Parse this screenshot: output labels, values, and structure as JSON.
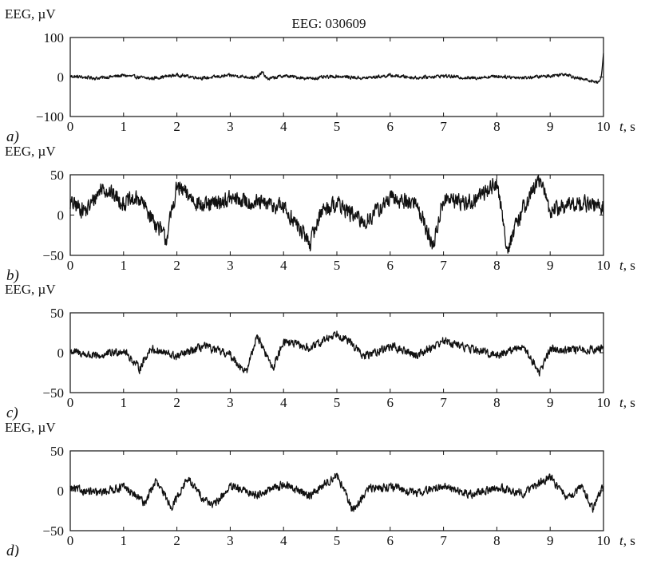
{
  "chart_data": [
    {
      "type": "line",
      "panel_label": "a)",
      "title": "EEG: 030609",
      "ylabel": "EEG, µV",
      "xlabel_var": "t",
      "xlabel_unit": ", s",
      "xlim": [
        0,
        10
      ],
      "ylim": [
        -100,
        100
      ],
      "x_ticks": [
        "0",
        "1",
        "2",
        "3",
        "4",
        "5",
        "6",
        "7",
        "8",
        "9",
        "10"
      ],
      "y_ticks": [
        "100",
        "0",
        "−100"
      ],
      "y_tick_values": [
        100,
        0,
        -100
      ],
      "grid": false,
      "series": [
        {
          "x": [
            0,
            0.5,
            1,
            1.5,
            2,
            2.5,
            3,
            3.5,
            3.6,
            3.7,
            4,
            4.5,
            5,
            5.5,
            6,
            6.5,
            7,
            7.5,
            8,
            8.5,
            9,
            9.3,
            9.5,
            9.8,
            9.9,
            9.95,
            10
          ],
          "values": [
            2,
            -3,
            4,
            -4,
            5,
            -3,
            4,
            -2,
            12,
            -5,
            3,
            -4,
            2,
            -3,
            4,
            -2,
            3,
            -3,
            2,
            -2,
            3,
            8,
            -3,
            -10,
            -14,
            -6,
            58
          ]
        }
      ]
    },
    {
      "type": "line",
      "panel_label": "b)",
      "title": "",
      "ylabel": "EEG, µV",
      "xlabel_var": "t",
      "xlabel_unit": ", s",
      "xlim": [
        0,
        10
      ],
      "ylim": [
        -50,
        50
      ],
      "x_ticks": [
        "0",
        "1",
        "2",
        "3",
        "4",
        "5",
        "6",
        "7",
        "8",
        "9",
        "10"
      ],
      "y_ticks": [
        "50",
        "0",
        "−50"
      ],
      "y_tick_values": [
        50,
        0,
        -50
      ],
      "grid": false,
      "series": [
        {
          "x": [
            0,
            0.3,
            0.6,
            1,
            1.3,
            1.8,
            2,
            2.5,
            3,
            3.5,
            4,
            4.5,
            4.7,
            5,
            5.5,
            6,
            6.5,
            6.8,
            7,
            7.5,
            8,
            8.2,
            8.5,
            8.8,
            9,
            9.5,
            10
          ],
          "values": [
            15,
            5,
            35,
            15,
            20,
            -30,
            35,
            10,
            20,
            15,
            10,
            -35,
            5,
            15,
            -10,
            20,
            15,
            -40,
            20,
            15,
            40,
            -42,
            10,
            45,
            5,
            15,
            10
          ]
        }
      ]
    },
    {
      "type": "line",
      "panel_label": "c)",
      "title": "",
      "ylabel": "EEG, µV",
      "xlabel_var": "t",
      "xlabel_unit": ", s",
      "xlim": [
        0,
        10
      ],
      "ylim": [
        -50,
        50
      ],
      "x_ticks": [
        "0",
        "1",
        "2",
        "3",
        "4",
        "5",
        "6",
        "7",
        "8",
        "9",
        "10"
      ],
      "y_ticks": [
        "50",
        "0",
        "−50"
      ],
      "y_tick_values": [
        50,
        0,
        -50
      ],
      "grid": false,
      "series": [
        {
          "x": [
            0,
            0.5,
            1,
            1.3,
            1.5,
            2,
            2.5,
            3,
            3.3,
            3.5,
            3.8,
            4,
            4.5,
            5,
            5.3,
            5.5,
            6,
            6.5,
            7,
            7.5,
            8,
            8.5,
            8.8,
            9,
            9.5,
            10
          ],
          "values": [
            2,
            -5,
            3,
            -20,
            5,
            -5,
            8,
            -3,
            -25,
            22,
            -20,
            15,
            5,
            25,
            10,
            -5,
            8,
            -3,
            15,
            5,
            -3,
            8,
            -25,
            5,
            3,
            5
          ]
        }
      ]
    },
    {
      "type": "line",
      "panel_label": "d)",
      "title": "",
      "ylabel": "EEG, µV",
      "xlabel_var": "t",
      "xlabel_unit": ", s",
      "xlim": [
        0,
        10
      ],
      "ylim": [
        -50,
        50
      ],
      "x_ticks": [
        "0",
        "1",
        "2",
        "3",
        "4",
        "5",
        "6",
        "7",
        "8",
        "9",
        "10"
      ],
      "y_ticks": [
        "50",
        "0",
        "−50"
      ],
      "y_tick_values": [
        50,
        0,
        -50
      ],
      "grid": false,
      "series": [
        {
          "x": [
            0,
            0.5,
            1,
            1.4,
            1.6,
            1.9,
            2.2,
            2.5,
            2.7,
            3,
            3.5,
            4,
            4.5,
            5,
            5.3,
            5.6,
            6,
            6.5,
            7,
            7.5,
            8,
            8.5,
            9,
            9.3,
            9.6,
            9.8,
            10
          ],
          "values": [
            3,
            -3,
            5,
            -15,
            12,
            -20,
            15,
            -10,
            -18,
            5,
            -5,
            8,
            -6,
            20,
            -25,
            3,
            5,
            -3,
            6,
            -5,
            4,
            -3,
            18,
            -10,
            5,
            -22,
            5
          ]
        }
      ]
    }
  ]
}
